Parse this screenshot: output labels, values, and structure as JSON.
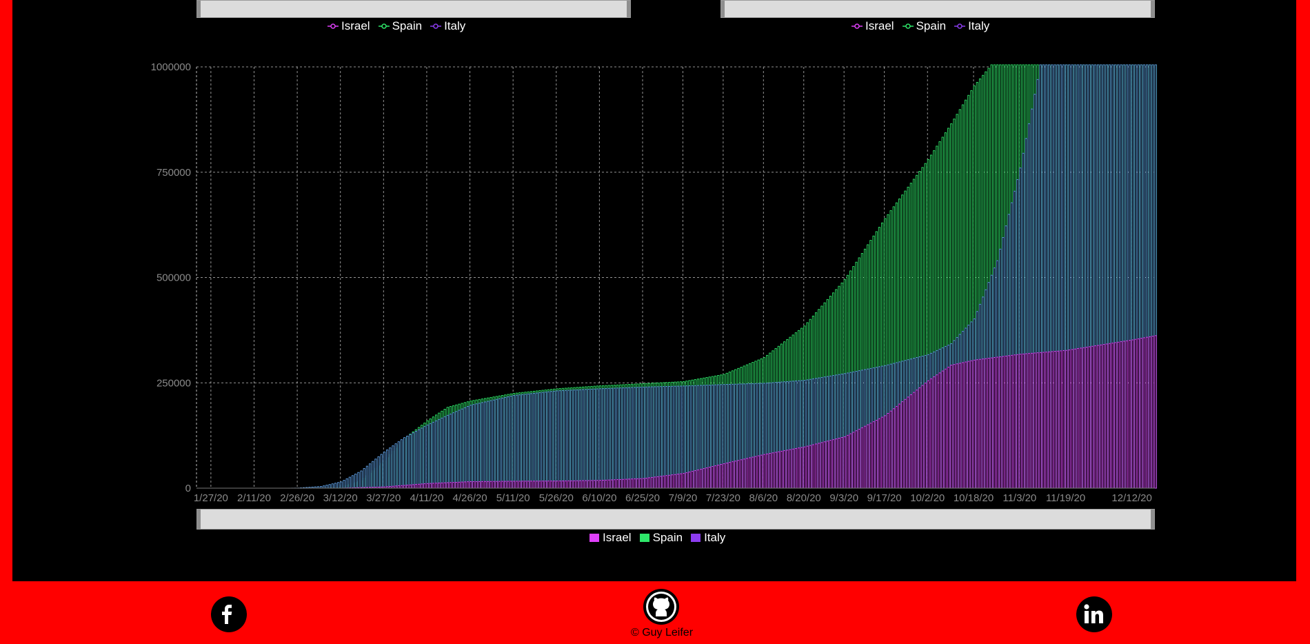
{
  "colors": {
    "background": "#ff0000",
    "panel": "#000000",
    "israel": "#e040fb",
    "spain": "#2ee86a",
    "italy": "#8c3cf0",
    "italy_bar_stroke": "#5fa0e6",
    "grid": "#bbbbbb",
    "axis_text": "#8a8a8a"
  },
  "top_left_legend": [
    {
      "label": "Israel",
      "color": "#e040fb"
    },
    {
      "label": "Spain",
      "color": "#2ee86a"
    },
    {
      "label": "Italy",
      "color": "#8c3cf0"
    }
  ],
  "top_right_legend": [
    {
      "label": "Israel",
      "color": "#e040fb"
    },
    {
      "label": "Spain",
      "color": "#2ee86a"
    },
    {
      "label": "Italy",
      "color": "#8c3cf0"
    }
  ],
  "bottom_legend": [
    {
      "label": "Israel",
      "color": "#e040fb"
    },
    {
      "label": "Spain",
      "color": "#2ee86a"
    },
    {
      "label": "Italy",
      "color": "#8c3cf0"
    }
  ],
  "chart_data": {
    "type": "bar",
    "stacked": false,
    "x_ticks": [
      "1/27/20",
      "2/11/20",
      "2/26/20",
      "3/12/20",
      "3/27/20",
      "4/11/20",
      "4/26/20",
      "5/11/20",
      "5/26/20",
      "6/10/20",
      "6/25/20",
      "7/9/20",
      "7/23/20",
      "8/6/20",
      "8/20/20",
      "9/3/20",
      "9/17/20",
      "10/2/20",
      "10/18/20",
      "11/3/20",
      "11/19/20",
      "12/12/20"
    ],
    "y_ticks": [
      0,
      250000,
      500000,
      750000,
      1000000
    ],
    "ylim": [
      0,
      1000000
    ],
    "xlim": [
      "1/22/20",
      "12/20/20"
    ],
    "grid": true,
    "legend_position": "bottom",
    "series": [
      {
        "name": "Spain",
        "color": "#2ee86a",
        "points": [
          [
            "1/22/20",
            0
          ],
          [
            "2/25/20",
            0
          ],
          [
            "3/5/20",
            300
          ],
          [
            "3/12/20",
            3000
          ],
          [
            "3/19/20",
            18000
          ],
          [
            "3/27/20",
            65000
          ],
          [
            "4/3/20",
            118000
          ],
          [
            "4/11/20",
            160000
          ],
          [
            "4/18/20",
            192000
          ],
          [
            "4/26/20",
            207000
          ],
          [
            "5/11/20",
            225000
          ],
          [
            "5/26/20",
            236000
          ],
          [
            "6/10/20",
            243000
          ],
          [
            "6/25/20",
            248000
          ],
          [
            "7/9/20",
            253000
          ],
          [
            "7/23/20",
            270000
          ],
          [
            "8/6/20",
            310000
          ],
          [
            "8/20/20",
            385000
          ],
          [
            "9/3/20",
            495000
          ],
          [
            "9/17/20",
            640000
          ],
          [
            "10/2/20",
            780000
          ],
          [
            "10/10/20",
            865000
          ],
          [
            "10/18/20",
            955000
          ],
          [
            "10/24/20",
            1005000
          ],
          [
            "12/20/20",
            1005000
          ]
        ]
      },
      {
        "name": "Italy",
        "color": "#8c3cf0",
        "points": [
          [
            "1/22/20",
            0
          ],
          [
            "2/22/20",
            0
          ],
          [
            "2/26/20",
            400
          ],
          [
            "3/5/20",
            4000
          ],
          [
            "3/12/20",
            15000
          ],
          [
            "3/19/20",
            41000
          ],
          [
            "3/27/20",
            86000
          ],
          [
            "4/3/20",
            120000
          ],
          [
            "4/11/20",
            150000
          ],
          [
            "4/18/20",
            173000
          ],
          [
            "4/26/20",
            197000
          ],
          [
            "5/11/20",
            220000
          ],
          [
            "5/26/20",
            231000
          ],
          [
            "6/10/20",
            236000
          ],
          [
            "6/25/20",
            240000
          ],
          [
            "7/9/20",
            242500
          ],
          [
            "7/23/20",
            246000
          ],
          [
            "8/6/20",
            249000
          ],
          [
            "8/20/20",
            256000
          ],
          [
            "9/3/20",
            272000
          ],
          [
            "9/17/20",
            291000
          ],
          [
            "10/2/20",
            317000
          ],
          [
            "10/10/20",
            343000
          ],
          [
            "10/18/20",
            402000
          ],
          [
            "10/26/20",
            540000
          ],
          [
            "11/3/20",
            760000
          ],
          [
            "11/10/20",
            1005000
          ],
          [
            "12/20/20",
            1005000
          ]
        ]
      },
      {
        "name": "Israel",
        "color": "#e040fb",
        "points": [
          [
            "1/22/20",
            0
          ],
          [
            "3/1/20",
            0
          ],
          [
            "3/12/20",
            100
          ],
          [
            "3/27/20",
            3000
          ],
          [
            "4/11/20",
            11000
          ],
          [
            "4/26/20",
            15500
          ],
          [
            "5/11/20",
            16500
          ],
          [
            "5/26/20",
            17000
          ],
          [
            "6/10/20",
            18500
          ],
          [
            "6/25/20",
            23000
          ],
          [
            "7/9/20",
            35000
          ],
          [
            "7/23/20",
            58000
          ],
          [
            "8/6/20",
            80000
          ],
          [
            "8/20/20",
            98000
          ],
          [
            "9/3/20",
            122000
          ],
          [
            "9/17/20",
            172000
          ],
          [
            "10/2/20",
            255000
          ],
          [
            "10/10/20",
            292000
          ],
          [
            "10/18/20",
            304000
          ],
          [
            "11/3/20",
            318000
          ],
          [
            "11/19/20",
            327000
          ],
          [
            "12/12/20",
            352000
          ],
          [
            "12/20/20",
            362000
          ]
        ]
      }
    ]
  },
  "footer": {
    "copyright": "© Guy Leifer",
    "facebook_icon": "facebook-icon",
    "github_icon": "github-icon",
    "linkedin_icon": "linkedin-icon"
  }
}
